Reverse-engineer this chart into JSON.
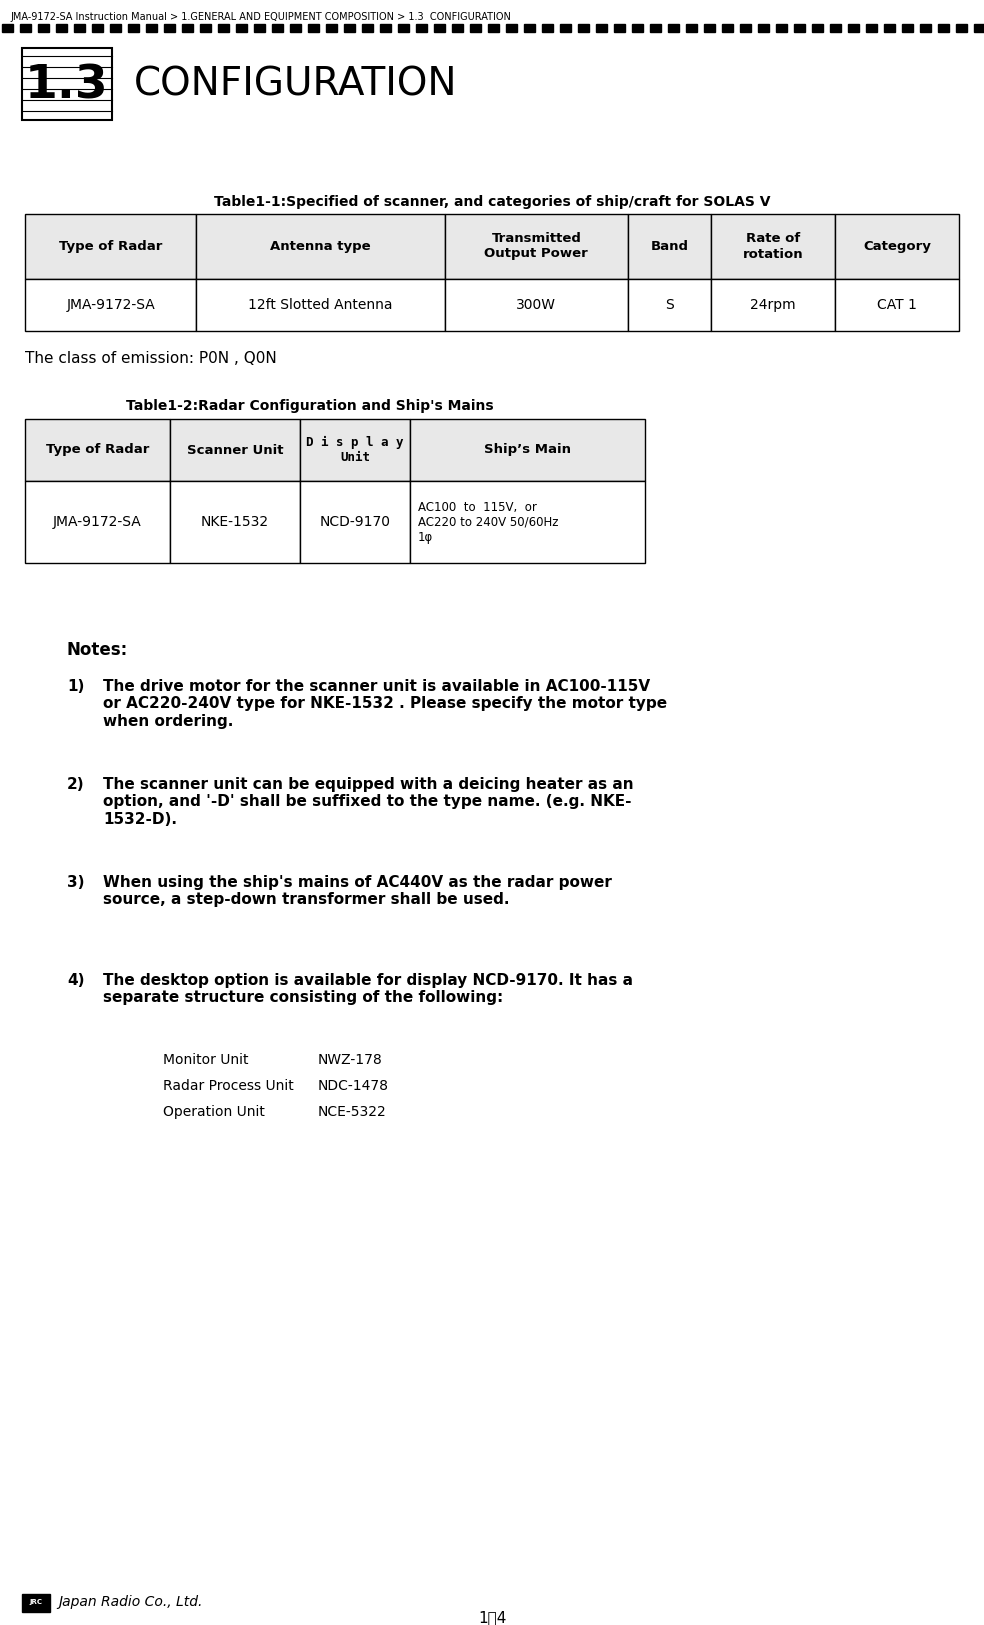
{
  "breadcrumb": "JMA-9172-SA Instruction Manual > 1.GENERAL AND EQUIPMENT COMPOSITION > 1.3  CONFIGURATION",
  "section_number": "1.3",
  "section_title": "CONFIGURATION",
  "table1_title": "Table1-1:Specified of scanner, and categories of ship/craft for SOLAS V",
  "table1_headers": [
    "Type of Radar",
    "Antenna type",
    "Transmitted\nOutput Power",
    "Band",
    "Rate of\nrotation",
    "Category"
  ],
  "table1_data": [
    [
      "JMA-9172-SA",
      "12ft Slotted Antenna",
      "300W",
      "S",
      "24rpm",
      "CAT 1"
    ]
  ],
  "emission_text": "The class of emission: P0N , Q0N",
  "table2_title": "Table1-2:Radar Configuration and Ship's Mains",
  "table2_headers": [
    "Type of Radar",
    "Scanner Unit",
    "D i s p l a y\nUnit",
    "Ship’s Main"
  ],
  "table2_data": [
    [
      "JMA-9172-SA",
      "NKE-1532",
      "NCD-9170",
      "AC100  to  115V,  or\nAC220 to 240V 50/60Hz\n1φ"
    ]
  ],
  "notes_label": "Notes:",
  "note_wraps": [
    "The drive motor for the scanner unit is available in AC100-115V\nor AC220-240V type for NKE-1532 . Please specify the motor type\nwhen ordering.",
    "The scanner unit can be equipped with a deicing heater as an\noption, and '-D' shall be suffixed to the type name. (e.g. NKE-\n1532-D).",
    "When using the ship's mains of AC440V as the radar power\nsource, a step-down transformer shall be used.",
    "The desktop option is available for display NCD-9170. It has a\nseparate structure consisting of the following:"
  ],
  "units_label": [
    [
      "Monitor Unit",
      "NWZ-178"
    ],
    [
      "Radar Process Unit",
      "NDC-1478"
    ],
    [
      "Operation Unit",
      "NCE-5322"
    ]
  ],
  "footer_text": "1－4",
  "bg_color": "#ffffff",
  "text_color": "#000000",
  "header_bg": "#e8e8e8",
  "table_border_color": "#000000"
}
